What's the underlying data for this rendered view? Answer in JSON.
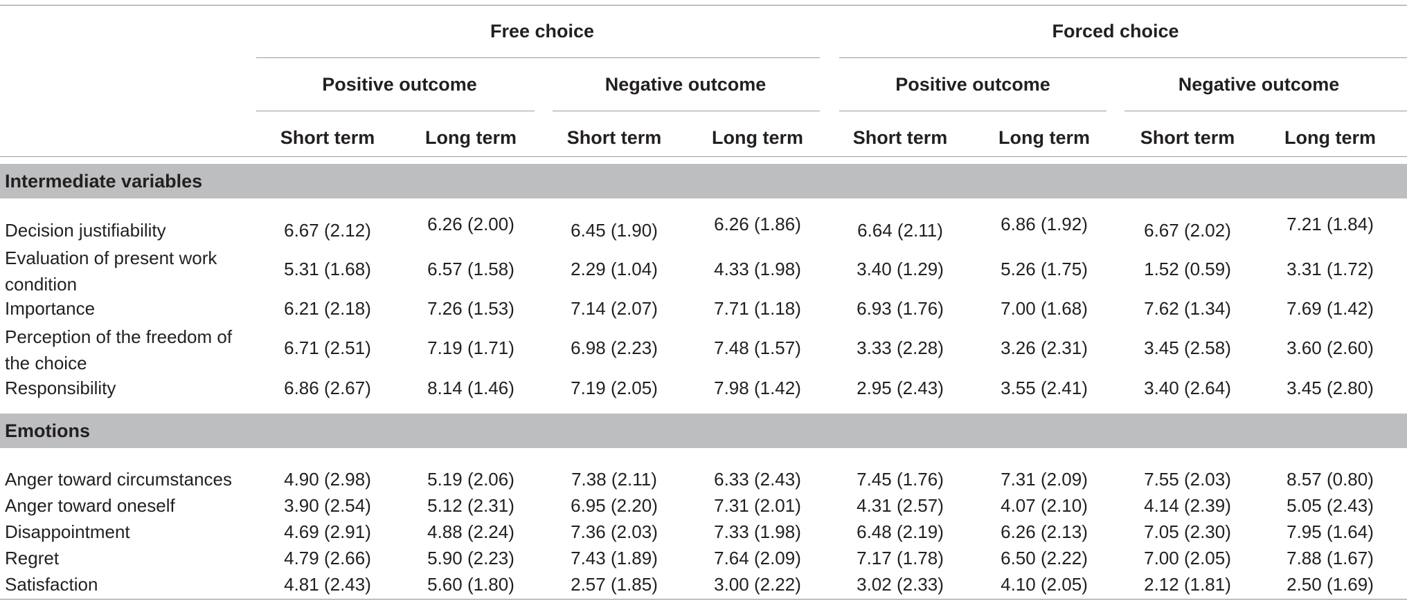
{
  "table": {
    "col_groups": [
      {
        "label": "Free choice",
        "outcomes": [
          {
            "label": "Positive outcome",
            "terms": [
              "Short term",
              "Long term"
            ]
          },
          {
            "label": "Negative outcome",
            "terms": [
              "Short term",
              "Long term"
            ]
          }
        ]
      },
      {
        "label": "Forced choice",
        "outcomes": [
          {
            "label": "Positive outcome",
            "terms": [
              "Short term",
              "Long term"
            ]
          },
          {
            "label": "Negative outcome",
            "terms": [
              "Short term",
              "Long term"
            ]
          }
        ]
      }
    ],
    "sections": [
      {
        "label": "Intermediate variables",
        "rows": [
          {
            "label": "Decision justifiability",
            "values": [
              "6.67 (2.12)",
              "6.26 (2.00)",
              "6.45 (1.90)",
              "6.26 (1.86)",
              "6.64 (2.11)",
              "6.86 (1.92)",
              "6.67 (2.02)",
              "7.21 (1.84)"
            ]
          },
          {
            "label": "Evaluation of present work condition",
            "values": [
              "5.31 (1.68)",
              "6.57 (1.58)",
              "2.29 (1.04)",
              "4.33 (1.98)",
              "3.40 (1.29)",
              "5.26 (1.75)",
              "1.52 (0.59)",
              "3.31 (1.72)"
            ]
          },
          {
            "label": "Importance",
            "values": [
              "6.21 (2.18)",
              "7.26 (1.53)",
              "7.14 (2.07)",
              "7.71 (1.18)",
              "6.93 (1.76)",
              "7.00 (1.68)",
              "7.62 (1.34)",
              "7.69 (1.42)"
            ]
          },
          {
            "label": "Perception of the freedom of the choice",
            "values": [
              "6.71 (2.51)",
              "7.19 (1.71)",
              "6.98 (2.23)",
              "7.48 (1.57)",
              "3.33 (2.28)",
              "3.26 (2.31)",
              "3.45 (2.58)",
              "3.60 (2.60)"
            ]
          },
          {
            "label": "Responsibility",
            "values": [
              "6.86 (2.67)",
              "8.14 (1.46)",
              "7.19 (2.05)",
              "7.98 (1.42)",
              "2.95 (2.43)",
              "3.55 (2.41)",
              "3.40 (2.64)",
              "3.45 (2.80)"
            ]
          }
        ]
      },
      {
        "label": "Emotions",
        "rows": [
          {
            "label": "Anger toward circumstances",
            "values": [
              "4.90 (2.98)",
              "5.19 (2.06)",
              "7.38 (2.11)",
              "6.33 (2.43)",
              "7.45 (1.76)",
              "7.31 (2.09)",
              "7.55 (2.03)",
              "8.57 (0.80)"
            ]
          },
          {
            "label": "Anger toward oneself",
            "values": [
              "3.90 (2.54)",
              "5.12 (2.31)",
              "6.95 (2.20)",
              "7.31 (2.01)",
              "4.31 (2.57)",
              "4.07 (2.10)",
              "4.14 (2.39)",
              "5.05 (2.43)"
            ]
          },
          {
            "label": "Disappointment",
            "values": [
              "4.69 (2.91)",
              "4.88 (2.24)",
              "7.36 (2.03)",
              "7.33 (1.98)",
              "6.48 (2.19)",
              "6.26 (2.13)",
              "7.05 (2.30)",
              "7.95 (1.64)"
            ]
          },
          {
            "label": "Regret",
            "values": [
              "4.79 (2.66)",
              "5.90 (2.23)",
              "7.43 (1.89)",
              "7.64 (2.09)",
              "7.17 (1.78)",
              "6.50 (2.22)",
              "7.00 (2.05)",
              "7.88 (1.67)"
            ]
          },
          {
            "label": "Satisfaction",
            "values": [
              "4.81 (2.43)",
              "5.60 (1.80)",
              "2.57 (1.85)",
              "3.00 (2.22)",
              "3.02 (2.33)",
              "4.10 (2.05)",
              "2.12 (1.81)",
              "2.50 (1.69)"
            ]
          }
        ]
      }
    ]
  }
}
